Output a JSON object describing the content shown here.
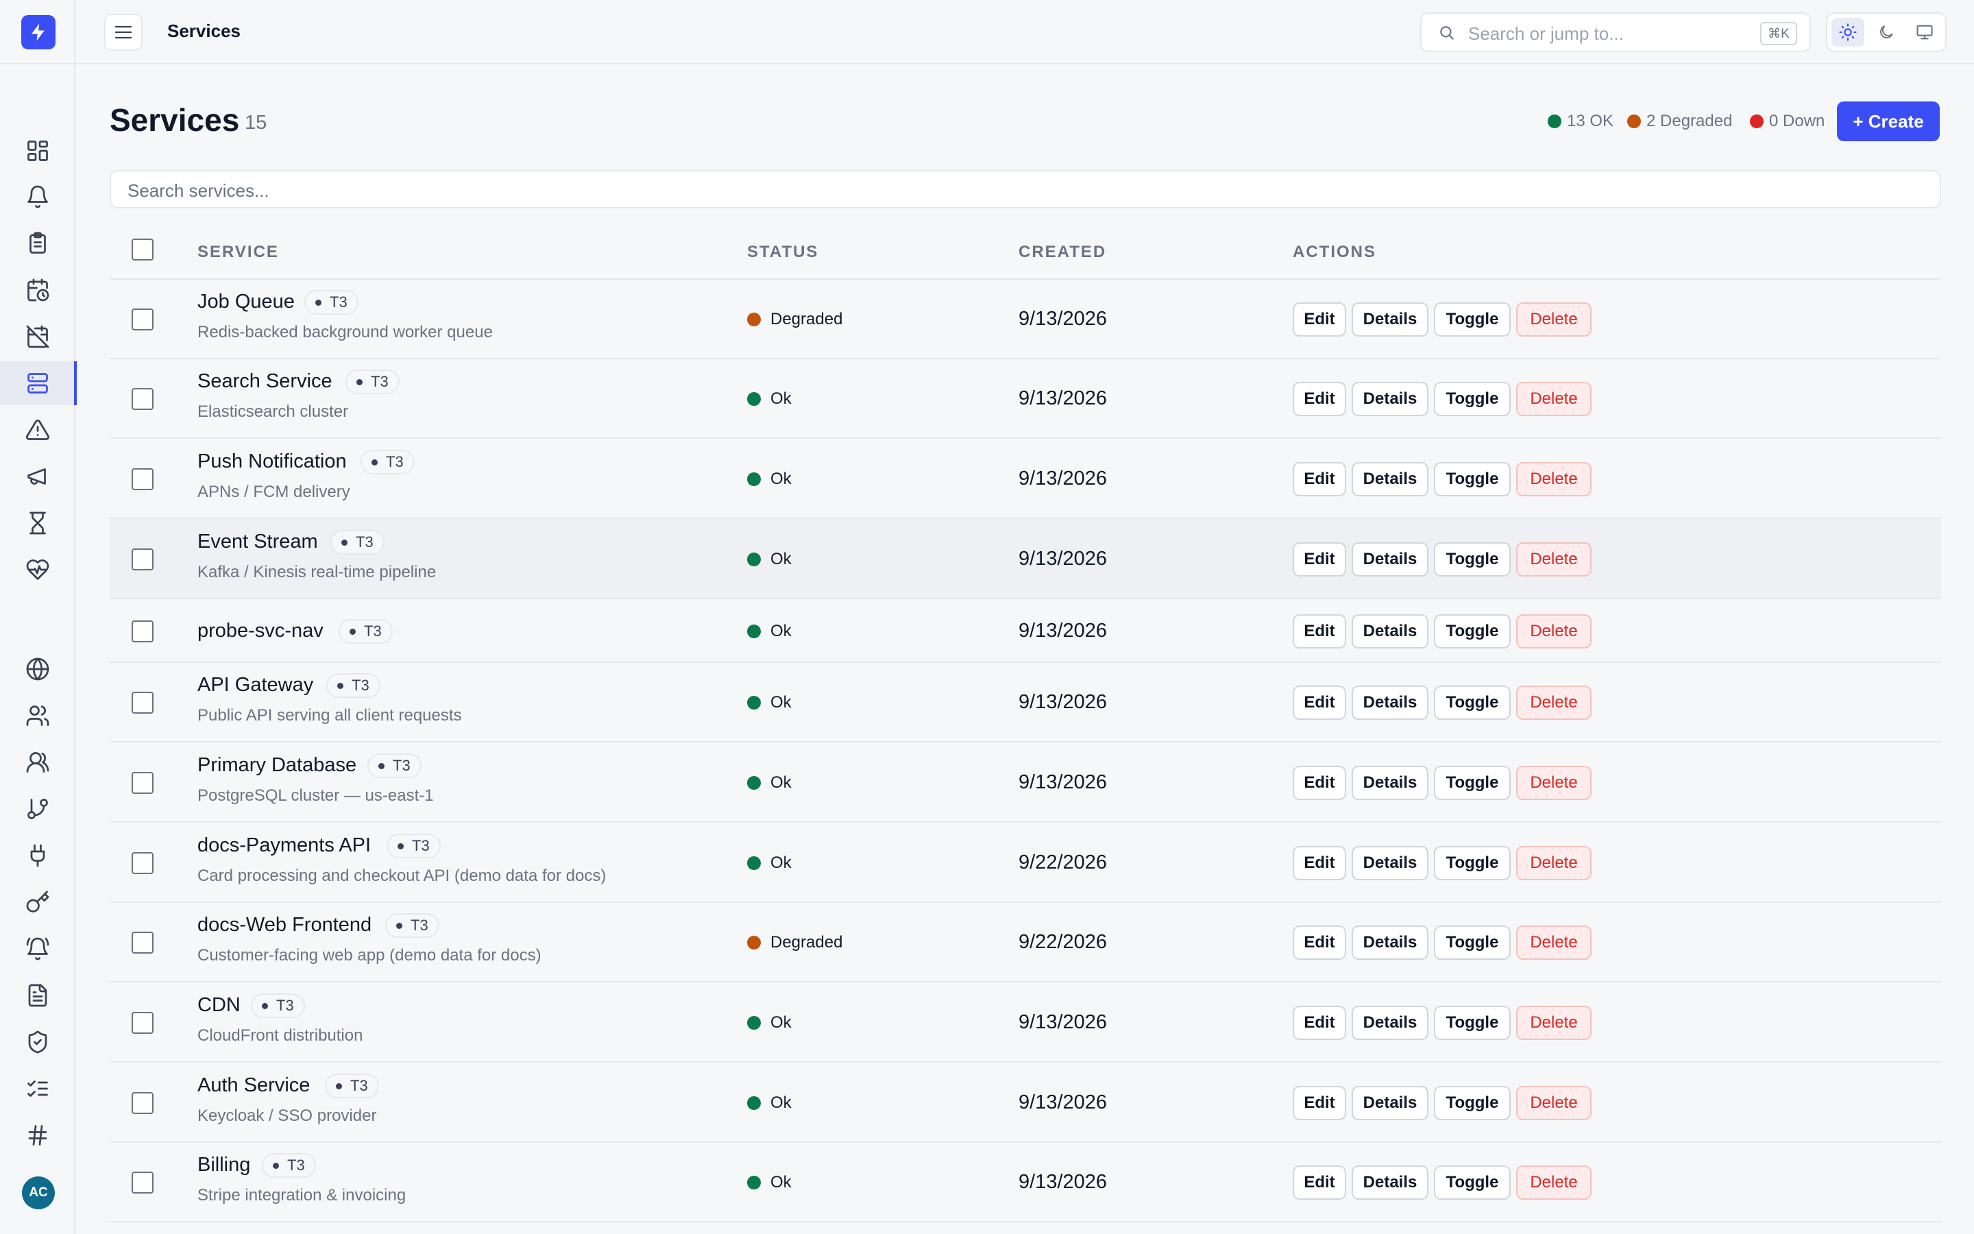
{
  "app": {
    "avatar_initials": "AC"
  },
  "topbar": {
    "title": "Services",
    "search_placeholder": "Search or jump to...",
    "shortcut": "⌘K"
  },
  "sidebar": {
    "icons": [
      "dashboard-icon",
      "bell-icon",
      "clipboard-icon",
      "calendar-clock-icon",
      "calendar-off-icon",
      "server-icon",
      "alert-triangle-icon",
      "megaphone-icon",
      "hourglass-icon",
      "heart-pulse-icon",
      "globe-icon",
      "users-icon",
      "user-group-icon",
      "git-branch-icon",
      "plug-icon",
      "key-icon",
      "bell-ring-icon",
      "file-text-icon",
      "shield-check-icon",
      "list-checks-icon",
      "hash-icon"
    ],
    "active": "server-icon"
  },
  "header": {
    "title": "Services",
    "count": "15",
    "summary": [
      {
        "label": "13 OK",
        "color": "#0a7a4a"
      },
      {
        "label": "2 Degraded",
        "color": "#c2530c"
      },
      {
        "label": "0 Down",
        "color": "#dc2626"
      }
    ],
    "create_label": "+ Create",
    "search_placeholder": "Search services..."
  },
  "table": {
    "columns": [
      "SERVICE",
      "STATUS",
      "CREATED",
      "ACTIONS"
    ],
    "actions": [
      "Edit",
      "Details",
      "Toggle",
      "Delete"
    ],
    "rows": [
      {
        "name": "Job Queue",
        "tier": "T3",
        "desc": "Redis-backed background worker queue",
        "status": "Degraded",
        "created": "9/13/2026"
      },
      {
        "name": "Search Service",
        "tier": "T3",
        "desc": "Elasticsearch cluster",
        "status": "Ok",
        "created": "9/13/2026"
      },
      {
        "name": "Push Notification",
        "tier": "T3",
        "desc": "APNs / FCM delivery",
        "status": "Ok",
        "created": "9/13/2026"
      },
      {
        "name": "Event Stream",
        "tier": "T3",
        "desc": "Kafka / Kinesis real-time pipeline",
        "status": "Ok",
        "created": "9/13/2026"
      },
      {
        "name": "probe-svc-nav",
        "tier": "T3",
        "desc": "",
        "status": "Ok",
        "created": "9/13/2026"
      },
      {
        "name": "API Gateway",
        "tier": "T3",
        "desc": "Public API serving all client requests",
        "status": "Ok",
        "created": "9/13/2026"
      },
      {
        "name": "Primary Database",
        "tier": "T3",
        "desc": "PostgreSQL cluster — us-east-1",
        "status": "Ok",
        "created": "9/13/2026"
      },
      {
        "name": "docs-Payments API",
        "tier": "T3",
        "desc": "Card processing and checkout API (demo data for docs)",
        "status": "Ok",
        "created": "9/22/2026"
      },
      {
        "name": "docs-Web Frontend",
        "tier": "T3",
        "desc": "Customer-facing web app (demo data for docs)",
        "status": "Degraded",
        "created": "9/22/2026"
      },
      {
        "name": "CDN",
        "tier": "T3",
        "desc": "CloudFront distribution",
        "status": "Ok",
        "created": "9/13/2026"
      },
      {
        "name": "Auth Service",
        "tier": "T3",
        "desc": "Keycloak / SSO provider",
        "status": "Ok",
        "created": "9/13/2026"
      },
      {
        "name": "Billing",
        "tier": "T3",
        "desc": "Stripe integration & invoicing",
        "status": "Ok",
        "created": "9/13/2026"
      }
    ]
  },
  "colors": {
    "accent": "#3b4ef5",
    "ok": "#0a7a4a",
    "degraded": "#c2530c",
    "down": "#dc2626"
  }
}
